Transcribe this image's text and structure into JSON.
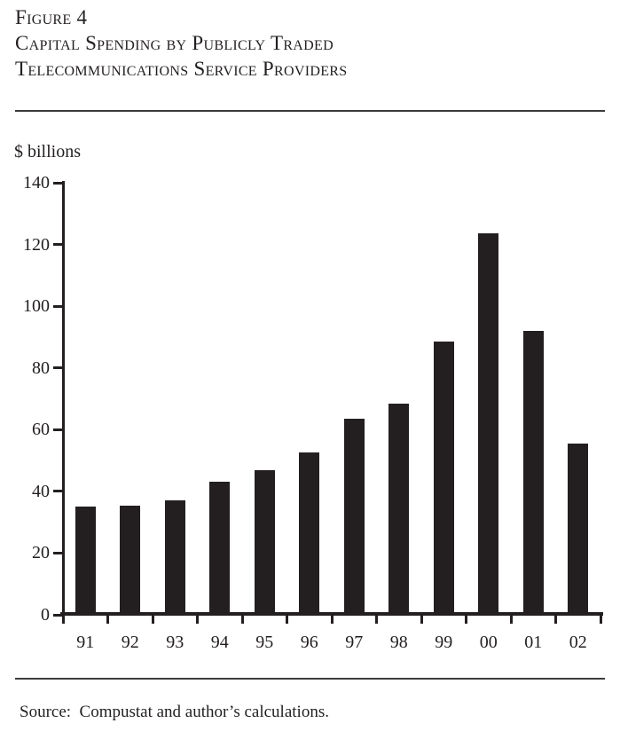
{
  "figure": {
    "label": "Figure 4",
    "title_line1": "Capital Spending by Publicly Traded",
    "title_line2": "Telecommunications Service Providers"
  },
  "axis_unit_label": "$ billions",
  "source_line": "Source:  Compustat and author’s calculations.",
  "colors": {
    "ink": "#231f20",
    "rule": "#3b3b3b",
    "background": "#ffffff",
    "bar": "#231f20"
  },
  "chart_data": {
    "type": "bar",
    "title": "Capital Spending by Publicly Traded Telecommunications Service Providers",
    "figure_label": "Figure 4",
    "xlabel": "",
    "ylabel": "$ billions",
    "categories": [
      "91",
      "92",
      "93",
      "94",
      "95",
      "96",
      "97",
      "98",
      "99",
      "00",
      "01",
      "02"
    ],
    "values": [
      35,
      35.5,
      37,
      43,
      47,
      52.5,
      63.5,
      68.5,
      88.5,
      123.5,
      92,
      55.5
    ],
    "ylim": [
      0,
      140
    ],
    "yticks": [
      0,
      20,
      40,
      60,
      80,
      100,
      120,
      140
    ],
    "grid": false,
    "legend": null,
    "bar_color": "#231f20",
    "source": "Compustat and author’s calculations."
  }
}
